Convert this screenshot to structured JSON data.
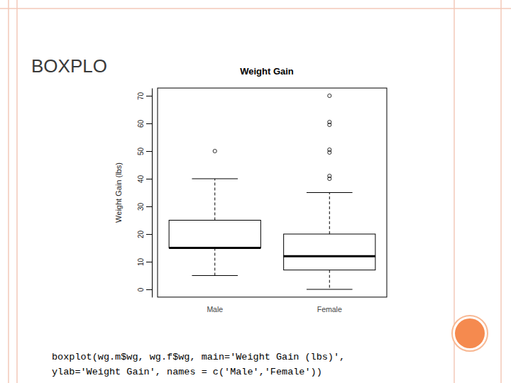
{
  "slide": {
    "title": "BOXPLO",
    "code": [
      "boxplot(wg.m$wg, wg.f$wg, main='Weight Gain (lbs)',",
      "ylab='Weight Gain', names = c('Male','Female'))"
    ]
  },
  "chart_data": {
    "type": "boxplot",
    "title": "Weight Gain",
    "y_label": "Weight Gain (lbs)",
    "categories": [
      "Male",
      "Female"
    ],
    "boxes": [
      {
        "min": 5,
        "q1": 15,
        "median": 15,
        "q3": 25,
        "max": 40,
        "outliers": [
          50
        ]
      },
      {
        "min": 0,
        "q1": 7,
        "median": 12,
        "q3": 20,
        "max": 35,
        "outliers": [
          40,
          41,
          49.5,
          50.5,
          59.5,
          60.5,
          70
        ]
      }
    ],
    "ylim": [
      -2.8,
      72.8
    ],
    "yticks": [
      0,
      10,
      20,
      30,
      40,
      50,
      60,
      70
    ],
    "grid": false
  }
}
